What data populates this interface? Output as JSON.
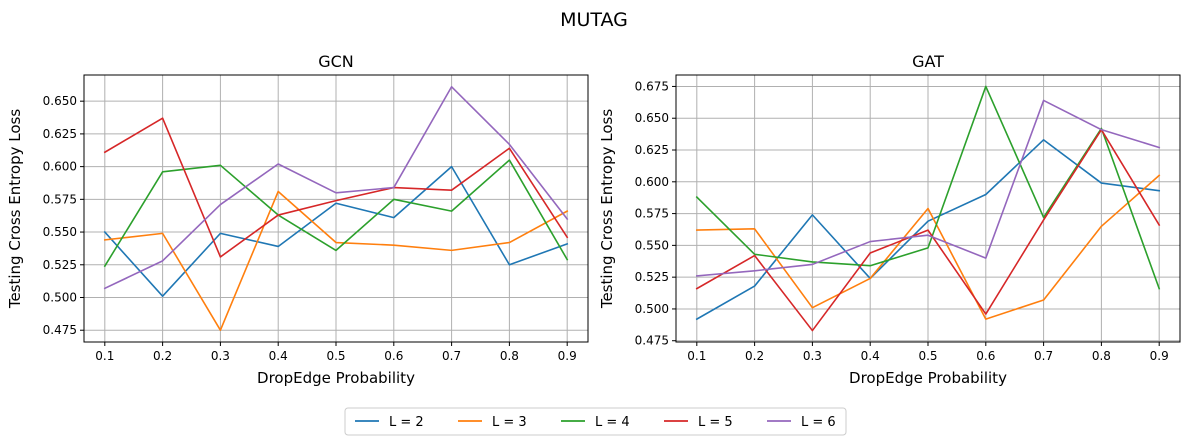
{
  "suptitle": "MUTAG",
  "legend": {
    "entries": [
      "L = 2",
      "L = 3",
      "L = 4",
      "L = 5",
      "L = 6"
    ],
    "colors": [
      "#1f77b4",
      "#ff7f0e",
      "#2ca02c",
      "#d62728",
      "#9467bd"
    ],
    "placement": "bottom-center"
  },
  "chart_data": [
    {
      "type": "line",
      "title": "GCN",
      "xlabel": "DropEdge Probability",
      "ylabel": "Testing Cross Entropy Loss",
      "x": [
        0.1,
        0.2,
        0.3,
        0.4,
        0.5,
        0.6,
        0.7,
        0.8,
        0.9
      ],
      "xticks": [
        "0.1",
        "0.2",
        "0.3",
        "0.4",
        "0.5",
        "0.6",
        "0.7",
        "0.8",
        "0.9"
      ],
      "yticks": [
        "0.475",
        "0.500",
        "0.525",
        "0.550",
        "0.575",
        "0.600",
        "0.625",
        "0.650"
      ],
      "xlim": [
        0.064,
        0.936
      ],
      "ylim": [
        0.466,
        0.67
      ],
      "grid": true,
      "series": [
        {
          "name": "L = 2",
          "color": "#1f77b4",
          "values": [
            0.55,
            0.501,
            0.549,
            0.539,
            0.572,
            0.561,
            0.6,
            0.525,
            0.541
          ]
        },
        {
          "name": "L = 3",
          "color": "#ff7f0e",
          "values": [
            0.544,
            0.549,
            0.475,
            0.581,
            0.542,
            0.54,
            0.536,
            0.542,
            0.566
          ]
        },
        {
          "name": "L = 4",
          "color": "#2ca02c",
          "values": [
            0.524,
            0.596,
            0.601,
            0.563,
            0.536,
            0.575,
            0.566,
            0.605,
            0.529
          ]
        },
        {
          "name": "L = 5",
          "color": "#d62728",
          "values": [
            0.611,
            0.637,
            0.531,
            0.563,
            0.574,
            0.584,
            0.582,
            0.614,
            0.546
          ]
        },
        {
          "name": "L = 6",
          "color": "#9467bd",
          "values": [
            0.507,
            0.528,
            0.571,
            0.602,
            0.58,
            0.584,
            0.661,
            0.617,
            0.56
          ]
        }
      ]
    },
    {
      "type": "line",
      "title": "GAT",
      "xlabel": "DropEdge Probability",
      "ylabel": "Testing Cross Entropy Loss",
      "x": [
        0.1,
        0.2,
        0.3,
        0.4,
        0.5,
        0.6,
        0.7,
        0.8,
        0.9
      ],
      "xticks": [
        "0.1",
        "0.2",
        "0.3",
        "0.4",
        "0.5",
        "0.6",
        "0.7",
        "0.8",
        "0.9"
      ],
      "yticks": [
        "0.475",
        "0.500",
        "0.525",
        "0.550",
        "0.575",
        "0.600",
        "0.625",
        "0.650",
        "0.675"
      ],
      "xlim": [
        0.064,
        0.936
      ],
      "ylim": [
        0.474,
        0.684
      ],
      "grid": true,
      "series": [
        {
          "name": "L = 2",
          "color": "#1f77b4",
          "values": [
            0.492,
            0.518,
            0.574,
            0.524,
            0.569,
            0.59,
            0.633,
            0.599,
            0.593
          ]
        },
        {
          "name": "L = 3",
          "color": "#ff7f0e",
          "values": [
            0.562,
            0.563,
            0.501,
            0.524,
            0.579,
            0.492,
            0.507,
            0.565,
            0.605
          ]
        },
        {
          "name": "L = 4",
          "color": "#2ca02c",
          "values": [
            0.588,
            0.543,
            0.537,
            0.534,
            0.548,
            0.675,
            0.572,
            0.642,
            0.516
          ]
        },
        {
          "name": "L = 5",
          "color": "#d62728",
          "values": [
            0.516,
            0.542,
            0.483,
            0.544,
            0.562,
            0.496,
            0.57,
            0.641,
            0.566
          ]
        },
        {
          "name": "L = 6",
          "color": "#9467bd",
          "values": [
            0.526,
            0.53,
            0.535,
            0.553,
            0.558,
            0.54,
            0.664,
            0.641,
            0.627
          ]
        }
      ]
    }
  ]
}
